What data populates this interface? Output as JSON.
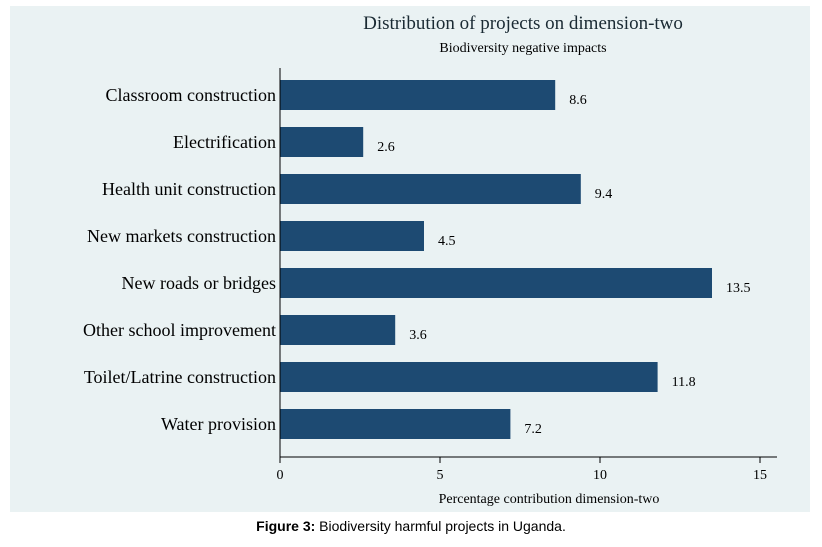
{
  "chart_data": {
    "type": "bar",
    "orientation": "horizontal",
    "title": "Distribution of projects on dimension-two",
    "subtitle": "Biodiversity negative impacts",
    "xlabel": "Percentage contribution dimension-two",
    "ylabel": "",
    "xlim": [
      0,
      15
    ],
    "xticks": [
      0,
      5,
      10,
      15
    ],
    "categories": [
      "Classroom construction",
      "Electrification",
      "Health unit construction",
      "New markets construction",
      "New roads or bridges",
      "Other school improvement",
      "Toilet/Latrine construction",
      "Water provision"
    ],
    "values": [
      8.6,
      2.6,
      9.4,
      4.5,
      13.5,
      3.6,
      11.8,
      7.2
    ],
    "value_labels": [
      "8.6",
      "2.6",
      "9.4",
      "4.5",
      "13.5",
      "3.6",
      "11.8",
      "7.2"
    ],
    "bar_color": "#1d4a72",
    "background": "#eaf2f3",
    "grid": false,
    "legend": "none"
  },
  "caption": {
    "label": "Figure 3:",
    "text": " Biodiversity harmful projects in Uganda."
  }
}
